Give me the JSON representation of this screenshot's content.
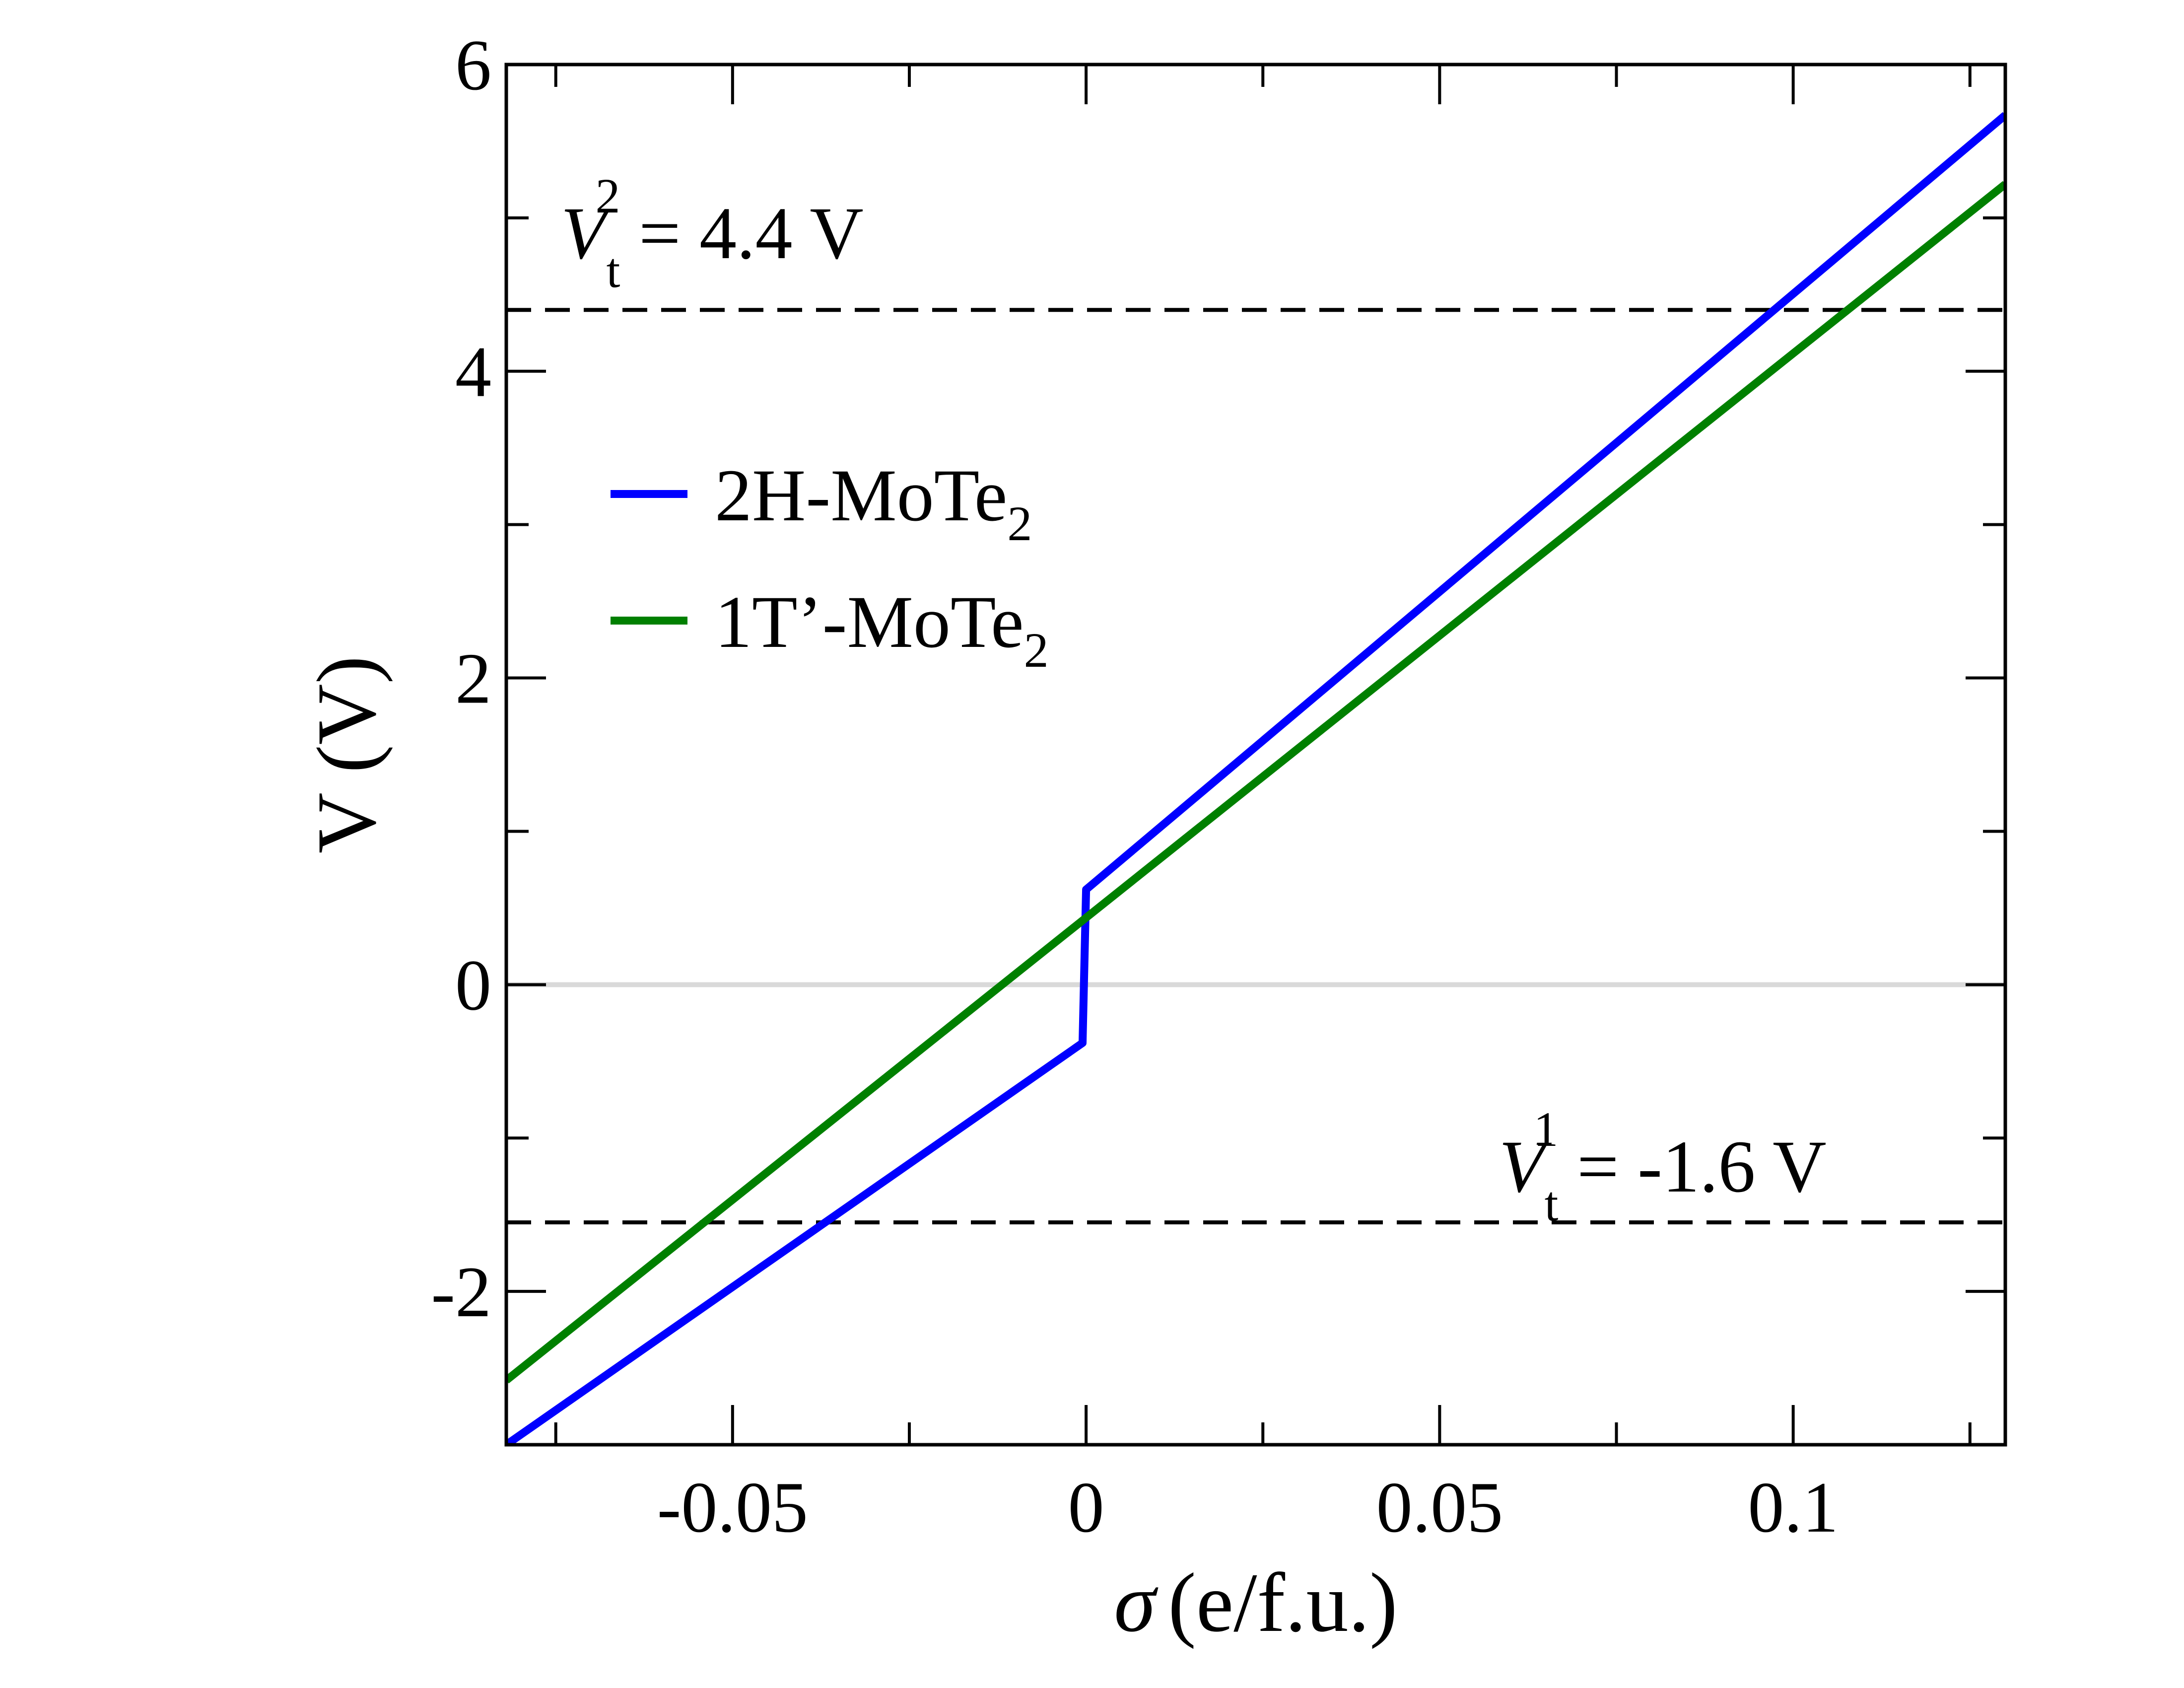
{
  "chart_data": {
    "type": "line",
    "xlabel_symbol": "σ",
    "xlabel_unit": "(e/f.u.)",
    "ylabel": "V (V)",
    "xlim": [
      -0.082,
      0.13
    ],
    "ylim": [
      -3.0,
      6.0
    ],
    "xticks": [
      -0.05,
      0,
      0.05,
      0.1
    ],
    "xtick_labels": [
      "-0.05",
      "0",
      "0.05",
      "0.1"
    ],
    "xminor_ticks": [
      -0.075,
      -0.025,
      0.025,
      0.075,
      0.125
    ],
    "yticks": [
      -2,
      0,
      2,
      4,
      6
    ],
    "ytick_labels": [
      "-2",
      "0",
      "2",
      "4",
      "6"
    ],
    "yminor_ticks": [
      -1,
      1,
      3,
      5
    ],
    "series": [
      {
        "name_main": "2H-MoTe",
        "name_sub": "2",
        "color": "#0000ff",
        "x": [
          -0.082,
          -0.0005,
          0.0,
          0.13
        ],
        "y": [
          -3.0,
          -0.38,
          0.62,
          5.67
        ]
      },
      {
        "name_main": "1T’-MoTe",
        "name_sub": "2",
        "color": "#008000",
        "x": [
          -0.082,
          0.13
        ],
        "y": [
          -2.58,
          5.22
        ]
      }
    ],
    "reference_lines": [
      {
        "y": 4.4,
        "style": "dashed",
        "color": "#000000"
      },
      {
        "y": -1.55,
        "style": "dashed",
        "color": "#000000"
      },
      {
        "y": 0,
        "style": "solid",
        "color": "#d9d9d9"
      }
    ],
    "annotations": [
      {
        "main": "V",
        "sub": "t",
        "sup": "2",
        "rest": " = 4.4 V"
      },
      {
        "main": "V",
        "sub": "t",
        "sup": "1",
        "rest": " = -1.6 V"
      }
    ],
    "legend_position": "upper-left"
  }
}
